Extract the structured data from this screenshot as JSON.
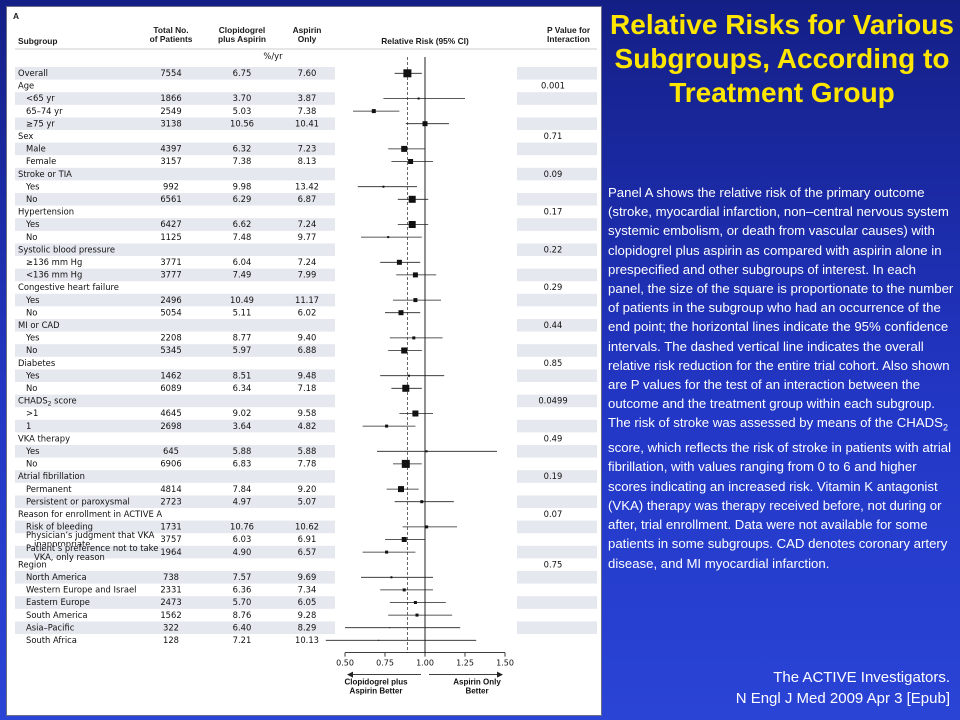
{
  "title": "Relative Risks for Various Subgroups, According to Treatment Group",
  "caption_parts": [
    "Panel A shows the relative risk of the primary outcome (stroke, myocardial infarction, non–central nervous system systemic embolism, or death from vascular causes) with clopidogrel plus aspirin as compared with aspirin alone in prespecified and other subgroups of interest. In each panel, the size of the square is proportionate to the number of patients in the subgroup who had an occurrence of the end point; the horizontal lines indicate the 95% confidence intervals. The dashed vertical line indicates the overall relative risk reduction for the entire trial cohort. Also shown are P values for the test of an interaction between the outcome and the treatment group within each subgroup. The risk of stroke was assessed by means of the CHADS",
    "2",
    " score, which reflects the risk of stroke in patients with atrial fibrillation, with values ranging from 0 to 6 and higher scores indicating an increased risk. Vitamin K antagonist (VKA) therapy was therapy received before, not during or after, trial enrollment. Data were not available for some patients in some subgroups. CAD denotes coronary artery disease, and MI myocardial infarction."
  ],
  "citation": [
    "The ACTIVE Investigators.",
    "N Engl J Med 2009 Apr 3 [Epub]"
  ],
  "chart_data": {
    "type": "forest",
    "panel_label": "A",
    "headers": {
      "subgroup": "Subgroup",
      "total": [
        "Total No.",
        "of Patients"
      ],
      "clop": [
        "Clopidogrel",
        "plus Aspirin"
      ],
      "asp": [
        "Aspirin",
        "Only"
      ],
      "rate_unit": "%/yr",
      "rr": "Relative Risk (95% CI)",
      "pval": [
        "P Value for",
        "Interaction"
      ]
    },
    "x_ticks": [
      "0.50",
      "0.75",
      "1.00",
      "1.25",
      "1.50"
    ],
    "xlim": [
      0.5,
      1.5
    ],
    "overall_rr": 0.89,
    "favors_left": [
      "Clopidogrel plus",
      "Aspirin Better"
    ],
    "favors_right": [
      "Aspirin Only",
      "Better"
    ],
    "rows": [
      {
        "label": "Overall",
        "level": 0,
        "n": "7554",
        "c": "6.75",
        "a": "7.60",
        "rr": 0.89,
        "lo": 0.81,
        "hi": 0.98,
        "size": 8,
        "shaded": true
      },
      {
        "label": "Age",
        "level": 0,
        "p": "0.001"
      },
      {
        "label": "<65 yr",
        "level": 1,
        "n": "1866",
        "c": "3.70",
        "a": "3.87",
        "rr": 0.96,
        "lo": 0.74,
        "hi": 1.25,
        "size": 2,
        "shaded": true
      },
      {
        "label": "65–74 yr",
        "level": 1,
        "n": "2549",
        "c": "5.03",
        "a": "7.38",
        "rr": 0.68,
        "lo": 0.55,
        "hi": 0.84,
        "size": 4
      },
      {
        "label": "≥75 yr",
        "level": 1,
        "n": "3138",
        "c": "10.56",
        "a": "10.41",
        "rr": 1.0,
        "lo": 0.88,
        "hi": 1.15,
        "size": 5,
        "shaded": true
      },
      {
        "label": "Sex",
        "level": 0,
        "p": "0.71"
      },
      {
        "label": "Male",
        "level": 1,
        "n": "4397",
        "c": "6.32",
        "a": "7.23",
        "rr": 0.87,
        "lo": 0.77,
        "hi": 1.0,
        "size": 6,
        "shaded": true
      },
      {
        "label": "Female",
        "level": 1,
        "n": "3157",
        "c": "7.38",
        "a": "8.13",
        "rr": 0.91,
        "lo": 0.79,
        "hi": 1.05,
        "size": 5
      },
      {
        "label": "Stroke or TIA",
        "level": 0,
        "p": "0.09",
        "shaded": true
      },
      {
        "label": "Yes",
        "level": 1,
        "n": "992",
        "c": "9.98",
        "a": "13.42",
        "rr": 0.74,
        "lo": 0.58,
        "hi": 0.95,
        "size": 2
      },
      {
        "label": "No",
        "level": 1,
        "n": "6561",
        "c": "6.29",
        "a": "6.87",
        "rr": 0.92,
        "lo": 0.83,
        "hi": 1.02,
        "size": 7,
        "shaded": true
      },
      {
        "label": "Hypertension",
        "level": 0,
        "p": "0.17"
      },
      {
        "label": "Yes",
        "level": 1,
        "n": "6427",
        "c": "6.62",
        "a": "7.24",
        "rr": 0.92,
        "lo": 0.83,
        "hi": 1.02,
        "size": 7,
        "shaded": true
      },
      {
        "label": "No",
        "level": 1,
        "n": "1125",
        "c": "7.48",
        "a": "9.77",
        "rr": 0.77,
        "lo": 0.6,
        "hi": 0.98,
        "size": 2
      },
      {
        "label": "Systolic blood pressure",
        "level": 0,
        "p": "0.22",
        "shaded": true
      },
      {
        "label": "≥136 mm Hg",
        "level": 1,
        "n": "3771",
        "c": "6.04",
        "a": "7.24",
        "rr": 0.84,
        "lo": 0.72,
        "hi": 0.97,
        "size": 5
      },
      {
        "label": "<136 mm Hg",
        "level": 1,
        "n": "3777",
        "c": "7.49",
        "a": "7.99",
        "rr": 0.94,
        "lo": 0.82,
        "hi": 1.07,
        "size": 5,
        "shaded": true
      },
      {
        "label": "Congestive heart failure",
        "level": 0,
        "p": "0.29"
      },
      {
        "label": "Yes",
        "level": 1,
        "n": "2496",
        "c": "10.49",
        "a": "11.17",
        "rr": 0.94,
        "lo": 0.8,
        "hi": 1.1,
        "size": 4,
        "shaded": true
      },
      {
        "label": "No",
        "level": 1,
        "n": "5054",
        "c": "5.11",
        "a": "6.02",
        "rr": 0.85,
        "lo": 0.75,
        "hi": 0.97,
        "size": 5
      },
      {
        "label": "MI or CAD",
        "level": 0,
        "p": "0.44",
        "shaded": true
      },
      {
        "label": "Yes",
        "level": 1,
        "n": "2208",
        "c": "8.77",
        "a": "9.40",
        "rr": 0.93,
        "lo": 0.78,
        "hi": 1.11,
        "size": 3
      },
      {
        "label": "No",
        "level": 1,
        "n": "5345",
        "c": "5.97",
        "a": "6.88",
        "rr": 0.87,
        "lo": 0.77,
        "hi": 0.98,
        "size": 6,
        "shaded": true
      },
      {
        "label": "Diabetes",
        "level": 0,
        "p": "0.85"
      },
      {
        "label": "Yes",
        "level": 1,
        "n": "1462",
        "c": "8.51",
        "a": "9.48",
        "rr": 0.9,
        "lo": 0.72,
        "hi": 1.12,
        "size": 2,
        "shaded": true
      },
      {
        "label": "No",
        "level": 1,
        "n": "6089",
        "c": "6.34",
        "a": "7.18",
        "rr": 0.88,
        "lo": 0.79,
        "hi": 0.98,
        "size": 7
      },
      {
        "label": "CHADS",
        "label_sub": "2",
        "label_suffix": " score",
        "level": 0,
        "p": "0.0499",
        "shaded": true
      },
      {
        "label": ">1",
        "level": 1,
        "n": "4645",
        "c": "9.02",
        "a": "9.58",
        "rr": 0.94,
        "lo": 0.84,
        "hi": 1.05,
        "size": 6
      },
      {
        "label": "1",
        "level": 1,
        "n": "2698",
        "c": "3.64",
        "a": "4.82",
        "rr": 0.76,
        "lo": 0.61,
        "hi": 0.94,
        "size": 3,
        "shaded": true
      },
      {
        "label": "VKA therapy",
        "level": 0,
        "p": "0.49"
      },
      {
        "label": "Yes",
        "level": 1,
        "n": "645",
        "c": "5.88",
        "a": "5.88",
        "rr": 1.01,
        "lo": 0.7,
        "hi": 1.45,
        "size": 2,
        "shaded": true
      },
      {
        "label": "No",
        "level": 1,
        "n": "6906",
        "c": "6.83",
        "a": "7.78",
        "rr": 0.88,
        "lo": 0.8,
        "hi": 0.98,
        "size": 8
      },
      {
        "label": "Atrial fibrillation",
        "level": 0,
        "p": "0.19",
        "shaded": true
      },
      {
        "label": "Permanent",
        "level": 1,
        "n": "4814",
        "c": "7.84",
        "a": "9.20",
        "rr": 0.85,
        "lo": 0.76,
        "hi": 0.96,
        "size": 6
      },
      {
        "label": "Persistent or paroxysmal",
        "level": 1,
        "n": "2723",
        "c": "4.97",
        "a": "5.07",
        "rr": 0.98,
        "lo": 0.81,
        "hi": 1.18,
        "size": 3,
        "shaded": true
      },
      {
        "label": "Reason for enrollment in ACTIVE A",
        "level": 0,
        "p": "0.07"
      },
      {
        "label": "Risk of bleeding",
        "level": 1,
        "n": "1731",
        "c": "10.76",
        "a": "10.62",
        "rr": 1.01,
        "lo": 0.86,
        "hi": 1.2,
        "size": 3,
        "shaded": true
      },
      {
        "label": [
          "Physician’s judgment that VKA",
          "inappropriate"
        ],
        "level": 1,
        "n": "3757",
        "c": "6.03",
        "a": "6.91",
        "rr": 0.87,
        "lo": 0.75,
        "hi": 1.0,
        "size": 5
      },
      {
        "label": [
          "Patient’s preference not to take",
          "VKA, only reason"
        ],
        "level": 1,
        "n": "1964",
        "c": "4.90",
        "a": "6.57",
        "rr": 0.76,
        "lo": 0.61,
        "hi": 0.94,
        "size": 3,
        "shaded": true
      },
      {
        "label": "Region",
        "level": 0,
        "p": "0.75"
      },
      {
        "label": "North America",
        "level": 1,
        "n": "738",
        "c": "7.57",
        "a": "9.69",
        "rr": 0.79,
        "lo": 0.6,
        "hi": 1.05,
        "size": 2,
        "shaded": true
      },
      {
        "label": "Western Europe and Israel",
        "level": 1,
        "n": "2331",
        "c": "6.36",
        "a": "7.34",
        "rr": 0.87,
        "lo": 0.72,
        "hi": 1.05,
        "size": 3
      },
      {
        "label": "Eastern Europe",
        "level": 1,
        "n": "2473",
        "c": "5.70",
        "a": "6.05",
        "rr": 0.94,
        "lo": 0.78,
        "hi": 1.13,
        "size": 3,
        "shaded": true
      },
      {
        "label": "South America",
        "level": 1,
        "n": "1562",
        "c": "8.76",
        "a": "9.28",
        "rr": 0.95,
        "lo": 0.77,
        "hi": 1.17,
        "size": 3
      },
      {
        "label": "Asia–Pacific",
        "level": 1,
        "n": "322",
        "c": "6.40",
        "a": "8.29",
        "rr": 0.78,
        "lo": 0.5,
        "hi": 1.22,
        "size": 1,
        "shaded": true
      },
      {
        "label": "South Africa",
        "level": 1,
        "n": "128",
        "c": "7.21",
        "a": "10.13",
        "rr": 0.71,
        "lo": 0.38,
        "hi": 1.32,
        "size": 1
      }
    ]
  }
}
